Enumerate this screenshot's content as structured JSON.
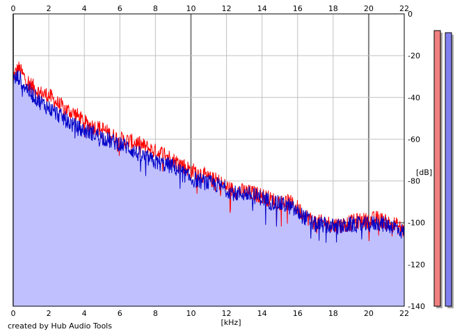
{
  "colors": {
    "background": "#ffffff",
    "grid": "#c0c0c0",
    "grid_major": "#808080",
    "fill": "#c0c0ff",
    "fill_edge": "#9090e8",
    "channel_left": "#ff0000",
    "channel_right": "#0000c8",
    "meter_left": "#f08080",
    "meter_right": "#8080f0",
    "meter_shadow": "#a8a8a8"
  },
  "footer": {
    "credit": "created by Hub Audio Tools"
  },
  "chart_data": {
    "type": "line",
    "xlabel": "[kHz]",
    "ylabel": "[dB]",
    "xlim": [
      0,
      22
    ],
    "ylim": [
      -140,
      0
    ],
    "x_ticks": [
      "0",
      "2",
      "4",
      "6",
      "8",
      "10",
      "12",
      "14",
      "16",
      "18",
      "20",
      "22"
    ],
    "y_ticks": [
      "0",
      "-20",
      "-40",
      "-60",
      "-80",
      "-100",
      "-120",
      "-140"
    ],
    "grid": true,
    "filled_area": "under blue channel",
    "series": [
      {
        "channel": "left",
        "color": "#ff0000",
        "x": [
          0,
          0.3,
          0.6,
          1,
          1.5,
          2,
          2.5,
          3,
          3.5,
          4,
          4.5,
          5,
          5.5,
          6,
          6.5,
          7,
          7.5,
          8,
          8.5,
          9,
          9.5,
          10,
          10.5,
          11,
          11.5,
          12,
          12.5,
          13,
          13.5,
          14,
          14.5,
          15,
          15.5,
          16,
          16.5,
          17,
          17.5,
          18,
          18.5,
          19,
          19.5,
          20,
          20.5,
          21,
          21.5,
          22
        ],
        "y": [
          -30,
          -26,
          -30,
          -34,
          -38,
          -39,
          -43,
          -46,
          -48,
          -52,
          -54,
          -55,
          -58,
          -60,
          -61,
          -62,
          -64,
          -66,
          -67,
          -70,
          -72,
          -75,
          -76,
          -79,
          -80,
          -83,
          -85,
          -85,
          -86,
          -87,
          -89,
          -90,
          -90,
          -93,
          -97,
          -100,
          -100,
          -101,
          -101,
          -100,
          -99,
          -99,
          -98,
          -100,
          -101,
          -104
        ]
      },
      {
        "channel": "right",
        "color": "#0000c8",
        "x": [
          0,
          0.3,
          0.6,
          1,
          1.5,
          2,
          2.5,
          3,
          3.5,
          4,
          4.5,
          5,
          5.5,
          6,
          6.5,
          7,
          7.5,
          8,
          8.5,
          9,
          9.5,
          10,
          10.5,
          11,
          11.5,
          12,
          12.5,
          13,
          13.5,
          14,
          14.5,
          15,
          15.5,
          16,
          16.5,
          17,
          17.5,
          18,
          18.5,
          19,
          19.5,
          20,
          20.5,
          21,
          21.5,
          22
        ],
        "y": [
          -32,
          -30,
          -34,
          -38,
          -42,
          -45,
          -48,
          -51,
          -54,
          -56,
          -57,
          -59,
          -61,
          -62,
          -64,
          -67,
          -69,
          -71,
          -72,
          -73,
          -76,
          -79,
          -80,
          -81,
          -82,
          -84,
          -86,
          -86,
          -87,
          -88,
          -90,
          -91,
          -92,
          -95,
          -98,
          -101,
          -101,
          -102,
          -102,
          -101,
          -101,
          -101,
          -100,
          -101,
          -102,
          -105
        ]
      }
    ],
    "level_meters": [
      {
        "channel": "left",
        "level_db": -8,
        "color": "#f08080"
      },
      {
        "channel": "right",
        "level_db": -9,
        "color": "#8080f0"
      }
    ]
  }
}
